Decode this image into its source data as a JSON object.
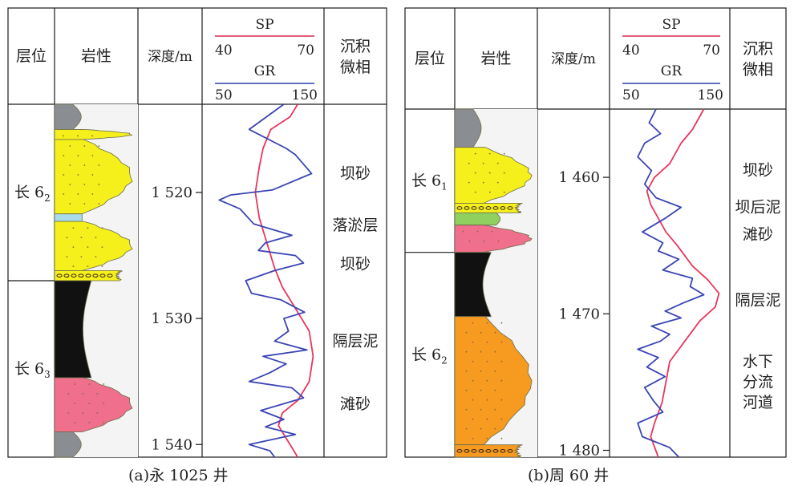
{
  "panels": [
    {
      "caption": "(a)永 1025 井",
      "headers": {
        "layer": "层位",
        "lithology": "岩性",
        "depth": "深度/m",
        "facies": "沉积微相"
      },
      "log_header": {
        "sp": {
          "label": "SP",
          "min": "40",
          "max": "70"
        },
        "gr": {
          "label": "GR",
          "min": "50",
          "max": "150"
        }
      },
      "layers": [
        {
          "name": "长 6",
          "sub": "2",
          "top": 1513,
          "bottom": 1527.0
        },
        {
          "name": "长 6",
          "sub": "3",
          "top": 1527.0,
          "bottom": 1541
        }
      ],
      "lithology": [
        {
          "type": "mudstone-gray",
          "top": 1513,
          "bottom": 1515.0,
          "color": "#8a8e93"
        },
        {
          "type": "sandstone",
          "top": 1515.0,
          "bottom": 1515.8,
          "color": "#f5ef1c"
        },
        {
          "type": "sandstone",
          "top": 1515.8,
          "bottom": 1521.7,
          "color": "#f5ef1c"
        },
        {
          "type": "silt-interlayer",
          "top": 1521.7,
          "bottom": 1522.3,
          "color": "#a9dbe9"
        },
        {
          "type": "sandstone",
          "top": 1522.3,
          "bottom": 1526.2,
          "color": "#f5ef1c"
        },
        {
          "type": "sandstone-pebbly-base",
          "top": 1526.2,
          "bottom": 1527.0,
          "color": "#f5ef1c"
        },
        {
          "type": "mudstone-dark",
          "top": 1527.0,
          "bottom": 1534.7,
          "color": "#111111"
        },
        {
          "type": "sandstone",
          "top": 1534.7,
          "bottom": 1539.0,
          "color": "#ef6f8c"
        },
        {
          "type": "mudstone-gray",
          "top": 1539.0,
          "bottom": 1541,
          "color": "#8a8e93"
        }
      ],
      "depth_axis": {
        "min": 1513,
        "max": 1541,
        "ticks": [
          {
            "value": 1520,
            "label": "1 520"
          },
          {
            "value": 1530,
            "label": "1 530"
          },
          {
            "value": 1540,
            "label": "1 540"
          }
        ]
      },
      "facies": [
        {
          "label": "坝砂",
          "depth": 1518.5
        },
        {
          "label": "落淤层",
          "depth": 1522.6
        },
        {
          "label": "坝砂",
          "depth": 1525.7
        },
        {
          "label": "隔层泥",
          "depth": 1531.8
        },
        {
          "label": "滩砂",
          "depth": 1536.8
        }
      ]
    },
    {
      "caption": "(b)周 60 井",
      "headers": {
        "layer": "层位",
        "lithology": "岩性",
        "depth": "深度/m",
        "facies": "沉积微相"
      },
      "log_header": {
        "sp": {
          "label": "SP",
          "min": "40",
          "max": "70"
        },
        "gr": {
          "label": "GR",
          "min": "50",
          "max": "150"
        }
      },
      "layers": [
        {
          "name": "长 6",
          "sub": "1",
          "top": 1455,
          "bottom": 1465.5
        },
        {
          "name": "长 6",
          "sub": "2",
          "top": 1465.5,
          "bottom": 1480.5
        }
      ],
      "lithology": [
        {
          "type": "mudstone-gray",
          "top": 1455,
          "bottom": 1457.8,
          "color": "#8a8e93"
        },
        {
          "type": "sandstone",
          "top": 1457.8,
          "bottom": 1461.9,
          "color": "#f5ef1c"
        },
        {
          "type": "sandstone-pebbly-base",
          "top": 1461.9,
          "bottom": 1462.6,
          "color": "#f5ef1c"
        },
        {
          "type": "siltstone",
          "top": 1462.6,
          "bottom": 1463.5,
          "color": "#8fd05e"
        },
        {
          "type": "sandstone",
          "top": 1463.5,
          "bottom": 1465.5,
          "color": "#ef6f8c"
        },
        {
          "type": "mudstone-dark",
          "top": 1465.5,
          "bottom": 1470.2,
          "color": "#111111"
        },
        {
          "type": "sandstone",
          "top": 1470.2,
          "bottom": 1479.6,
          "color": "#f79a20"
        },
        {
          "type": "sandstone-pebbly-base",
          "top": 1479.6,
          "bottom": 1480.5,
          "color": "#f79a20"
        }
      ],
      "depth_axis": {
        "min": 1455,
        "max": 1480.5,
        "ticks": [
          {
            "value": 1460,
            "label": "1 460"
          },
          {
            "value": 1470,
            "label": "1 470"
          },
          {
            "value": 1480,
            "label": "1 480"
          }
        ]
      },
      "facies": [
        {
          "label": "坝砂",
          "depth": 1459.5
        },
        {
          "label": "坝后泥",
          "depth": 1462.2
        },
        {
          "label": "滩砂",
          "depth": 1464.2
        },
        {
          "label": "隔层泥",
          "depth": 1469.0
        },
        {
          "label": "水下",
          "depth": 1473.5
        },
        {
          "label": "分流",
          "depth": 1475.0
        },
        {
          "label": "河道",
          "depth": 1476.5
        }
      ]
    }
  ],
  "colors": {
    "sp": "#e8365d",
    "gr": "#3a45b5",
    "grid": "#1a1a1a",
    "sp_header": "#d9284a",
    "gr_header": "#2c3fa8"
  },
  "chart_data": [
    {
      "type": "line",
      "well": "永 1025 井",
      "y_axis": {
        "label": "深度/m",
        "range": [
          1513,
          1541
        ]
      },
      "series": [
        {
          "name": "SP",
          "x_range": [
            40,
            70
          ],
          "points": [
            [
              64,
              1513
            ],
            [
              62,
              1514
            ],
            [
              57,
              1515
            ],
            [
              55,
              1516.5
            ],
            [
              54,
              1518
            ],
            [
              53,
              1520
            ],
            [
              54,
              1522
            ],
            [
              56,
              1524
            ],
            [
              58,
              1526
            ],
            [
              60,
              1527.5
            ],
            [
              63,
              1529
            ],
            [
              67,
              1531
            ],
            [
              68,
              1533
            ],
            [
              67,
              1535
            ],
            [
              64,
              1536.5
            ],
            [
              60,
              1537.5
            ],
            [
              59,
              1538.5
            ],
            [
              61,
              1539.5
            ],
            [
              63,
              1540.5
            ],
            [
              64,
              1541
            ]
          ]
        },
        {
          "name": "GR",
          "x_range": [
            50,
            150
          ],
          "points": [
            [
              118,
              1513
            ],
            [
              88,
              1515
            ],
            [
              120,
              1516.5
            ],
            [
              128,
              1517
            ],
            [
              142,
              1518.5
            ],
            [
              108,
              1519.8
            ],
            [
              72,
              1520.2
            ],
            [
              62,
              1520.6
            ],
            [
              80,
              1521.3
            ],
            [
              92,
              1522.5
            ],
            [
              125,
              1523.4
            ],
            [
              102,
              1524
            ],
            [
              96,
              1524.6
            ],
            [
              128,
              1525
            ],
            [
              135,
              1525.6
            ],
            [
              110,
              1526.2
            ],
            [
              85,
              1527
            ],
            [
              90,
              1528
            ],
            [
              115,
              1528.5
            ],
            [
              136,
              1529.5
            ],
            [
              118,
              1530
            ],
            [
              122,
              1531
            ],
            [
              110,
              1531.8
            ],
            [
              138,
              1532.5
            ],
            [
              100,
              1533
            ],
            [
              120,
              1533.6
            ],
            [
              106,
              1534.3
            ],
            [
              88,
              1535
            ],
            [
              125,
              1535.5
            ],
            [
              135,
              1536.3
            ],
            [
              98,
              1537.3
            ],
            [
              118,
              1538
            ],
            [
              102,
              1538.6
            ],
            [
              128,
              1539.2
            ],
            [
              88,
              1540
            ],
            [
              106,
              1540.5
            ],
            [
              110,
              1541
            ]
          ]
        }
      ]
    },
    {
      "type": "line",
      "well": "周 60 井",
      "y_axis": {
        "label": "深度/m",
        "range": [
          1455,
          1480.5
        ]
      },
      "series": [
        {
          "name": "SP",
          "x_range": [
            40,
            70
          ],
          "points": [
            [
              64,
              1455
            ],
            [
              61,
              1456.5
            ],
            [
              58,
              1457.5
            ],
            [
              55,
              1459
            ],
            [
              51,
              1460
            ],
            [
              49,
              1461
            ],
            [
              50,
              1462
            ],
            [
              52,
              1463
            ],
            [
              54,
              1464
            ],
            [
              57,
              1465
            ],
            [
              61,
              1466.5
            ],
            [
              65,
              1467.5
            ],
            [
              68,
              1468.5
            ],
            [
              67,
              1469.5
            ],
            [
              63,
              1470.5
            ],
            [
              59,
              1472
            ],
            [
              55,
              1473.5
            ],
            [
              54,
              1475
            ],
            [
              53,
              1476.5
            ],
            [
              51,
              1478
            ],
            [
              50,
              1479
            ],
            [
              52,
              1480.5
            ]
          ]
        },
        {
          "name": "GR",
          "x_range": [
            50,
            150
          ],
          "points": [
            [
              88,
              1455
            ],
            [
              82,
              1456
            ],
            [
              92,
              1456.8
            ],
            [
              78,
              1457.5
            ],
            [
              72,
              1458.5
            ],
            [
              84,
              1459.5
            ],
            [
              78,
              1460.5
            ],
            [
              88,
              1461.5
            ],
            [
              110,
              1462.2
            ],
            [
              96,
              1463
            ],
            [
              76,
              1464
            ],
            [
              94,
              1464.8
            ],
            [
              90,
              1465.4
            ],
            [
              108,
              1466
            ],
            [
              94,
              1466.8
            ],
            [
              120,
              1467.4
            ],
            [
              118,
              1468
            ],
            [
              130,
              1468.6
            ],
            [
              112,
              1469.2
            ],
            [
              96,
              1469.8
            ],
            [
              110,
              1470.3
            ],
            [
              84,
              1470.9
            ],
            [
              100,
              1471.5
            ],
            [
              92,
              1472
            ],
            [
              72,
              1472.6
            ],
            [
              90,
              1473.2
            ],
            [
              80,
              1473.9
            ],
            [
              96,
              1474.6
            ],
            [
              78,
              1475.4
            ],
            [
              86,
              1476.4
            ],
            [
              94,
              1477.2
            ],
            [
              72,
              1478
            ],
            [
              76,
              1479
            ],
            [
              100,
              1479.8
            ],
            [
              108,
              1480.5
            ]
          ]
        }
      ]
    }
  ]
}
